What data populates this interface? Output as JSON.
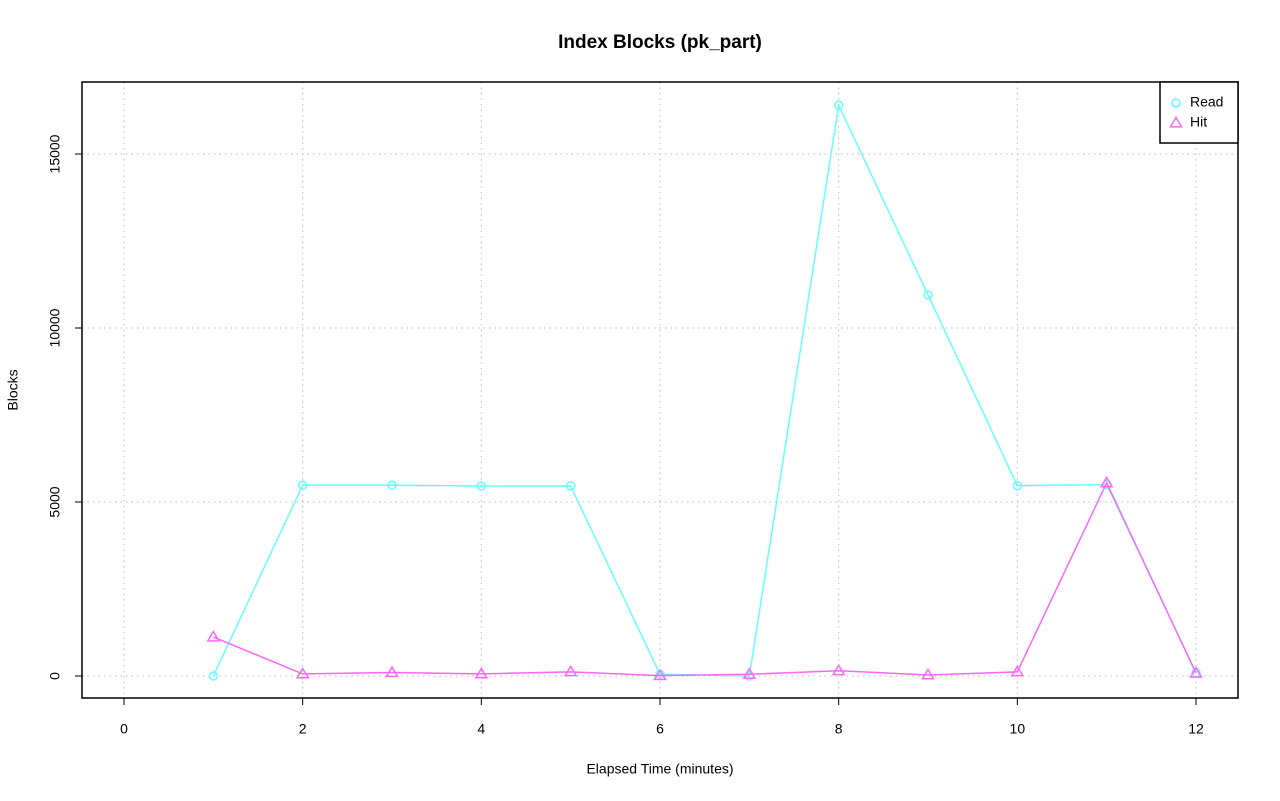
{
  "chart_data": {
    "type": "line",
    "title": "Index Blocks (pk_part)",
    "x_label": "Elapsed Time (minutes)",
    "y_label": "Blocks",
    "x": [
      1,
      2,
      3,
      4,
      5,
      6,
      7,
      8,
      9,
      10,
      11,
      12
    ],
    "series": [
      {
        "name": "Read",
        "color": "#66ffff",
        "marker": "circle",
        "values": [
          0,
          5480,
          5480,
          5460,
          5460,
          50,
          0,
          16400,
          10950,
          5470,
          5500,
          100
        ]
      },
      {
        "name": "Hit",
        "color": "#ff66ff",
        "marker": "triangle",
        "values": [
          1120,
          60,
          100,
          60,
          120,
          10,
          50,
          150,
          30,
          120,
          5550,
          80
        ]
      }
    ],
    "xlim": [
      -0.47,
      12.47
    ],
    "ylim": [
      -632,
      17069
    ],
    "xticks": [
      0,
      2,
      4,
      6,
      8,
      10,
      12
    ],
    "yticks": [
      0,
      5000,
      10000,
      15000
    ],
    "grid": true,
    "legend_position": "top-right"
  }
}
